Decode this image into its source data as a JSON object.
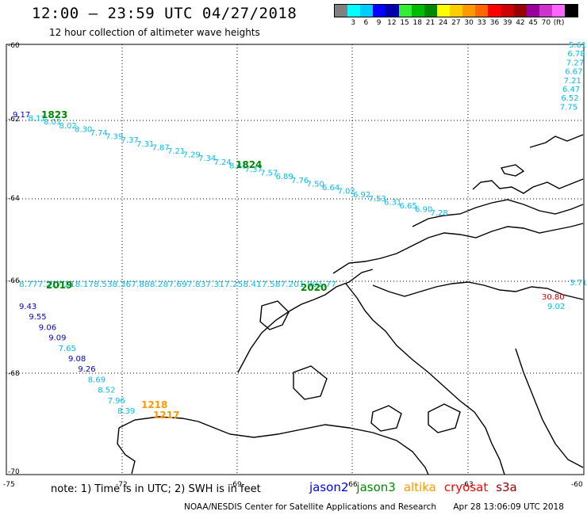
{
  "header": {
    "title": "12:00 – 23:59 UTC 04/27/2018",
    "subtitle": "12 hour collection of altimeter wave heights"
  },
  "legend": {
    "colors": [
      "#808080",
      "#00ffff",
      "#00ccff",
      "#0000ff",
      "#0000aa",
      "#33ee33",
      "#00bb00",
      "#008800",
      "#ffff00",
      "#ffcc00",
      "#ff9900",
      "#ff6600",
      "#ff0000",
      "#cc0000",
      "#990000",
      "#990099",
      "#cc33cc",
      "#ff66ff",
      "#000000"
    ],
    "labels": [
      "3",
      "6",
      "9",
      "12",
      "15",
      "18",
      "21",
      "24",
      "27",
      "30",
      "33",
      "36",
      "39",
      "42",
      "45",
      "70",
      "(ft)"
    ]
  },
  "axes": {
    "lat_labels": [
      "-60",
      "-62",
      "-64",
      "-66",
      "-68",
      "-70"
    ],
    "lon_labels": [
      "-75",
      "-72",
      "-69",
      "-66",
      "-63",
      "-60"
    ]
  },
  "passes": [
    {
      "time": "1823",
      "color": "#008800"
    },
    {
      "time": "1824",
      "color": "#008800"
    },
    {
      "time": "2019",
      "color": "#008800"
    },
    {
      "time": "2020",
      "color": "#008800"
    },
    {
      "time": "1218",
      "color": "#ff9900"
    },
    {
      "time": "1217",
      "color": "#ff9900"
    }
  ],
  "track_top_right": [
    "5.61",
    "6.78",
    "7.27",
    "6.67",
    "7.21",
    "6.47",
    "6.52",
    "7.75"
  ],
  "track_diag": [
    "9.17",
    "8.11",
    "8.01",
    "8.02",
    "8.30",
    "7.74",
    "7.39",
    "7.37",
    "7.31",
    "7.87",
    "7.21",
    "7.29",
    "7.34",
    "7.24",
    "8.41",
    "7.37",
    "7.57",
    "6.89",
    "7.76",
    "7.50",
    "6.64",
    "7.02",
    "6.92",
    "7.53",
    "6.31",
    "6.65",
    "6.90",
    "7.28"
  ],
  "track_horiz": "8.777.217.218.178.538.367.888.287.697.837.317.258.417.587.201.901.77",
  "track_horiz_end": "3.71",
  "track_left_down": [
    "9.43",
    "9.55",
    "9.06",
    "9.09",
    "7.65",
    "9.08",
    "9.26",
    "8.69",
    "8.52",
    "7.96",
    "8.39"
  ],
  "track_right_small": [
    "30.80",
    "9.02"
  ],
  "footer": {
    "note": "note:  1) Time is in UTC;  2) SWH is in feet",
    "satellites": [
      {
        "name": "jason2",
        "color": "#0000ff"
      },
      {
        "name": "jason3",
        "color": "#008800"
      },
      {
        "name": "altika",
        "color": "#ff9900"
      },
      {
        "name": "cryosat",
        "color": "#ff0000"
      },
      {
        "name": "s3a",
        "color": "#990000"
      }
    ],
    "credit": "NOAA/NESDIS Center for Satellite Applications and Research",
    "timestamp": "Apr 28 13:06:09 UTC 2018"
  }
}
